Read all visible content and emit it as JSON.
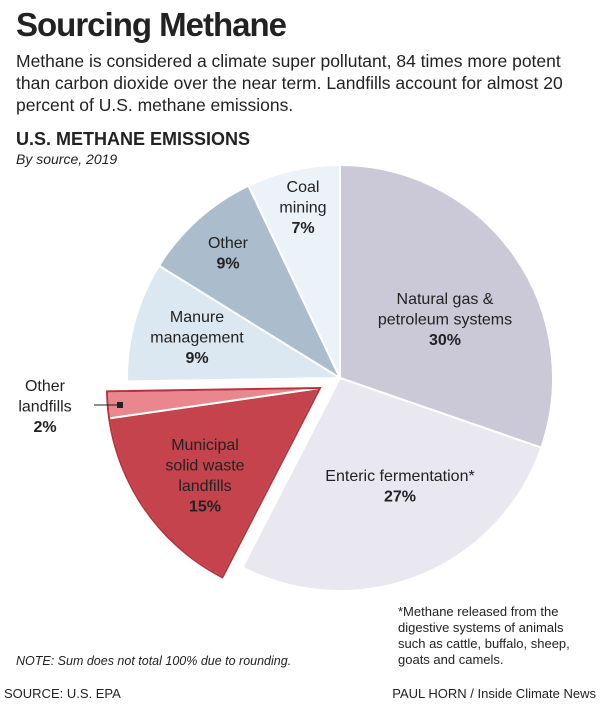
{
  "title": "Sourcing Methane",
  "intro": "Methane is considered a climate super pollutant, 84 times more potent than carbon dioxide over the near term. Landfills account for almost 20 percent of U.S. methane emissions.",
  "chart_data": {
    "type": "pie",
    "title": "U.S. METHANE EMISSIONS",
    "subtitle": "By source, 2019",
    "categories": [
      [
        "Natural gas &",
        "petroleum systems"
      ],
      [
        "Enteric fermentation*"
      ],
      [
        "Municipal",
        "solid waste",
        "landfills"
      ],
      [
        "Other",
        "landfills"
      ],
      [
        "Manure",
        "management"
      ],
      [
        "Other"
      ],
      [
        "Coal",
        "mining"
      ]
    ],
    "values": [
      30,
      27,
      15,
      2,
      9,
      9,
      7
    ],
    "value_labels": [
      "30%",
      "27%",
      "15%",
      "2%",
      "9%",
      "9%",
      "7%"
    ],
    "colors": [
      "#cbc8d8",
      "#e9e7ef",
      "#c5434c",
      "#ea868d",
      "#dbe7f1",
      "#abbdcc",
      "#ebf3f9"
    ],
    "footnote": "*Methane released from the digestive systems of animals such as cattle, buffalo, sheep, goats and camels.",
    "note": "NOTE: Sum does not total 100% due to rounding."
  },
  "source": "SOURCE: U.S. EPA",
  "credit": "PAUL HORN / Inside Climate News"
}
